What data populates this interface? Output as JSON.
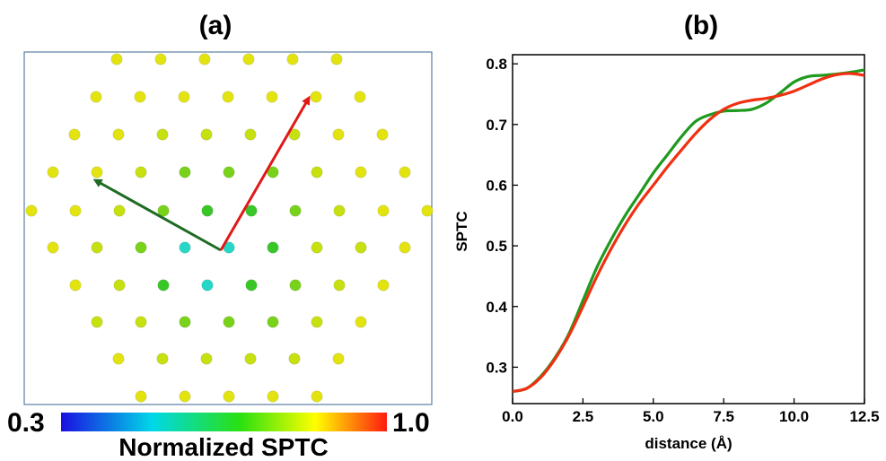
{
  "panel_a": {
    "label": "(a)",
    "colorbar": {
      "min_label": "0.3",
      "max_label": "1.0",
      "title": "Normalized SPTC",
      "colors": [
        "#1a10e0",
        "#00d8e8",
        "#2ae010",
        "#ffff00",
        "#ff1a10"
      ]
    },
    "arrows": [
      {
        "name": "green",
        "color": "#1f6b24"
      },
      {
        "name": "red",
        "color": "#e01818"
      }
    ]
  },
  "chart_data": {
    "type": "line",
    "label": "(b)",
    "title": "",
    "xlabel": "distance (Å)",
    "ylabel": "SPTC",
    "xlim": [
      0,
      12.5
    ],
    "ylim": [
      0.24,
      0.815
    ],
    "xticks": [
      "0.0",
      "2.5",
      "5.0",
      "7.5",
      "10.0",
      "12.5"
    ],
    "yticks": [
      "0.3",
      "0.4",
      "0.5",
      "0.6",
      "0.7",
      "0.8"
    ],
    "series": [
      {
        "color": "#1e9a1e",
        "x": [
          0,
          0.5,
          1.0,
          1.5,
          2.0,
          2.5,
          3.0,
          3.5,
          4.0,
          4.5,
          5.0,
          5.5,
          6.0,
          6.5,
          7.0,
          7.5,
          8.0,
          8.5,
          9.0,
          9.5,
          10.0,
          10.5,
          11.0,
          11.5,
          12.0,
          12.5
        ],
        "y": [
          0.26,
          0.265,
          0.285,
          0.315,
          0.355,
          0.41,
          0.465,
          0.51,
          0.55,
          0.585,
          0.62,
          0.65,
          0.68,
          0.705,
          0.716,
          0.722,
          0.723,
          0.725,
          0.735,
          0.752,
          0.77,
          0.779,
          0.781,
          0.783,
          0.786,
          0.79
        ]
      },
      {
        "color": "#f03010",
        "x": [
          0,
          0.5,
          1.0,
          1.5,
          2.0,
          2.5,
          3.0,
          3.5,
          4.0,
          4.5,
          5.0,
          5.5,
          6.0,
          6.5,
          7.0,
          7.5,
          8.0,
          8.5,
          9.0,
          9.5,
          10.0,
          10.5,
          11.0,
          11.5,
          12.0,
          12.5
        ],
        "y": [
          0.26,
          0.265,
          0.283,
          0.313,
          0.352,
          0.4,
          0.45,
          0.495,
          0.535,
          0.57,
          0.6,
          0.63,
          0.658,
          0.685,
          0.708,
          0.725,
          0.735,
          0.74,
          0.743,
          0.748,
          0.755,
          0.765,
          0.775,
          0.782,
          0.784,
          0.781
        ]
      }
    ]
  }
}
